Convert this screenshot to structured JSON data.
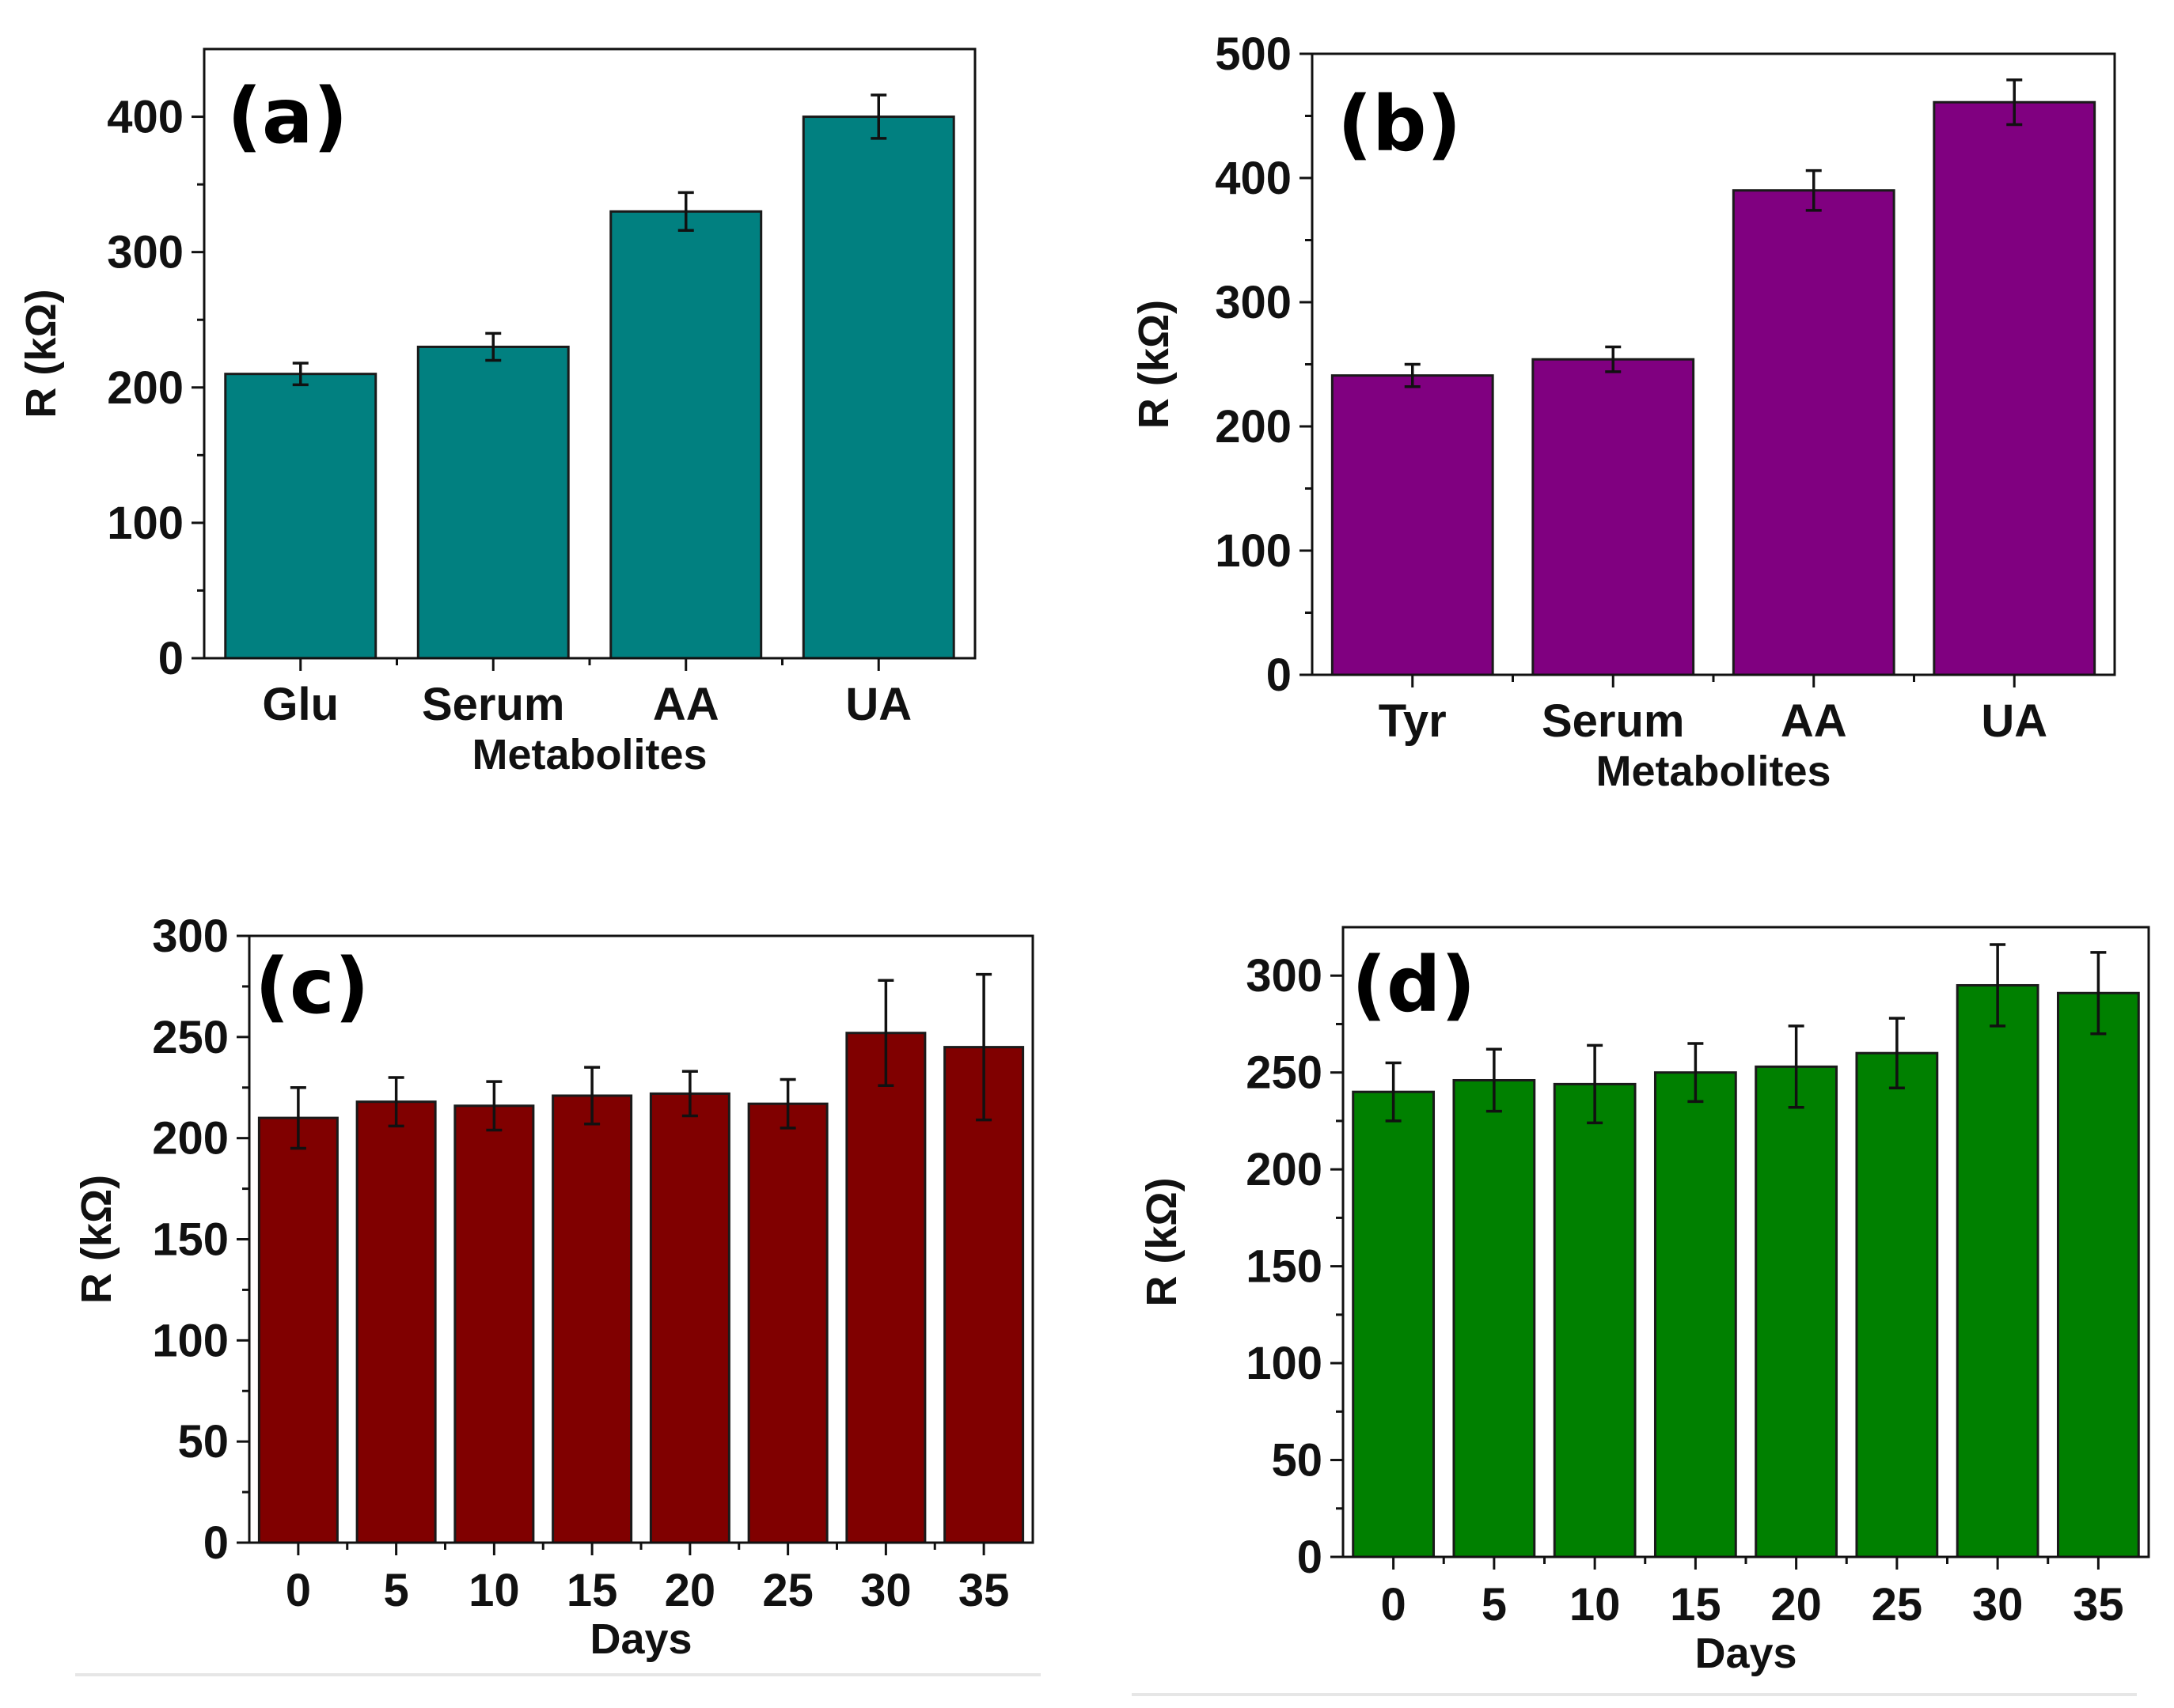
{
  "chart_data": [
    {
      "id": "a",
      "type": "bar",
      "panel_label": "(a)",
      "categories": [
        "Glu",
        "Serum",
        "AA",
        "UA"
      ],
      "values": [
        210,
        230,
        330,
        400
      ],
      "errors": [
        8,
        10,
        14,
        16
      ],
      "ylim": [
        0,
        450
      ],
      "yticks": [
        0,
        100,
        200,
        300,
        400
      ],
      "xlabel": "Metabolites",
      "ylabel": "R (kΩ)",
      "color": "#018080"
    },
    {
      "id": "b",
      "type": "bar",
      "panel_label": "(b)",
      "categories": [
        "Tyr",
        "Serum",
        "AA",
        "UA"
      ],
      "values": [
        241,
        254,
        390,
        461
      ],
      "errors": [
        9,
        10,
        16,
        18
      ],
      "ylim": [
        0,
        500
      ],
      "yticks": [
        0,
        100,
        200,
        300,
        400,
        500
      ],
      "xlabel": "Metabolites",
      "ylabel": "R (kΩ)",
      "color": "#800080"
    },
    {
      "id": "c",
      "type": "bar",
      "panel_label": "(c)",
      "categories": [
        "0",
        "5",
        "10",
        "15",
        "20",
        "25",
        "30",
        "35"
      ],
      "values": [
        210,
        218,
        216,
        221,
        222,
        217,
        252,
        245
      ],
      "errors": [
        15,
        12,
        12,
        14,
        11,
        12,
        26,
        36
      ],
      "ylim": [
        0,
        300
      ],
      "yticks": [
        0,
        50,
        100,
        150,
        200,
        250,
        300
      ],
      "xlabel": "Days",
      "ylabel": "R (kΩ)",
      "color": "#800000"
    },
    {
      "id": "d",
      "type": "bar",
      "panel_label": "(d)",
      "categories": [
        "0",
        "5",
        "10",
        "15",
        "20",
        "25",
        "30",
        "35"
      ],
      "values": [
        240,
        246,
        244,
        250,
        253,
        260,
        295,
        291
      ],
      "errors": [
        15,
        16,
        20,
        15,
        21,
        18,
        21,
        21
      ],
      "ylim": [
        0,
        325
      ],
      "yticks": [
        0,
        50,
        100,
        150,
        200,
        250,
        300
      ],
      "xlabel": "Days",
      "ylabel": "R (kΩ)",
      "color": "#008000"
    }
  ]
}
